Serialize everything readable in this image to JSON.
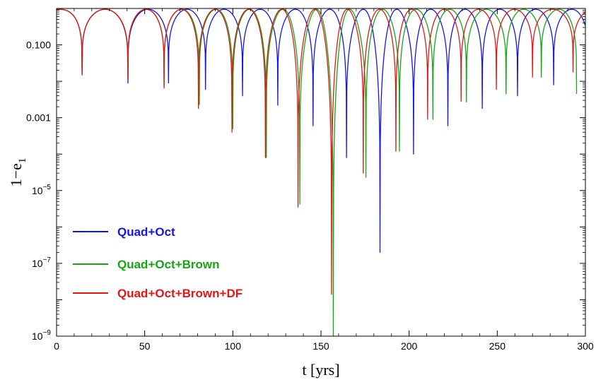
{
  "chart_data": {
    "type": "line",
    "title": "",
    "xlabel": "t [yrs]",
    "ylabel_main": "1−e",
    "ylabel_sub": "1",
    "xlim": [
      0,
      300
    ],
    "ylim_log10": [
      -9,
      0
    ],
    "y_scale": "log",
    "grid": false,
    "legend_position": "lower-left",
    "x_ticks": [
      {
        "value": 0,
        "label": "0"
      },
      {
        "value": 50,
        "label": "50"
      },
      {
        "value": 100,
        "label": "100"
      },
      {
        "value": 150,
        "label": "150"
      },
      {
        "value": 200,
        "label": "200"
      },
      {
        "value": 250,
        "label": "250"
      },
      {
        "value": 300,
        "label": "300"
      }
    ],
    "y_ticks": [
      {
        "value_log10": -1,
        "label": "0.100",
        "base": "",
        "exp": ""
      },
      {
        "value_log10": -3,
        "label": "0.001",
        "base": "",
        "exp": ""
      },
      {
        "value_log10": -5,
        "label": "",
        "base": "10",
        "exp": "−5"
      },
      {
        "value_log10": -7,
        "label": "",
        "base": "10",
        "exp": "−7"
      },
      {
        "value_log10": -9,
        "label": "",
        "base": "10",
        "exp": "−9"
      }
    ],
    "top_value": 0.95,
    "series": [
      {
        "name": "Quad+Oct",
        "color": "#1414e6",
        "minima": [
          {
            "t": 14.5,
            "v": 0.015
          },
          {
            "t": 40.5,
            "v": 0.009
          },
          {
            "t": 63.5,
            "v": 0.009
          },
          {
            "t": 84.5,
            "v": 0.006
          },
          {
            "t": 105.5,
            "v": 0.004
          },
          {
            "t": 125.5,
            "v": 0.0022
          },
          {
            "t": 145.5,
            "v": 0.0006
          },
          {
            "t": 164.5,
            "v": 8e-05
          },
          {
            "t": 183.5,
            "v": 2e-07
          },
          {
            "t": 202.5,
            "v": 0.0001
          },
          {
            "t": 222.0,
            "v": 0.0006
          },
          {
            "t": 241.5,
            "v": 0.0018
          },
          {
            "t": 261.5,
            "v": 0.004
          },
          {
            "t": 282.0,
            "v": 0.008
          }
        ]
      },
      {
        "name": "Quad+Oct+Brown",
        "color": "#14a514",
        "minima": [
          {
            "t": 14.5,
            "v": 0.015
          },
          {
            "t": 40.5,
            "v": 0.011
          },
          {
            "t": 61.0,
            "v": 0.007
          },
          {
            "t": 81.0,
            "v": 0.0023
          },
          {
            "t": 100.0,
            "v": 0.0005
          },
          {
            "t": 119.0,
            "v": 8e-05
          },
          {
            "t": 138.0,
            "v": 4.2e-06
          },
          {
            "t": 157.0,
            "v": 1e-09
          },
          {
            "t": 175.5,
            "v": 2.3e-05
          },
          {
            "t": 194.5,
            "v": 0.00012
          },
          {
            "t": 213.5,
            "v": 0.0009
          },
          {
            "t": 232.5,
            "v": 0.0027
          },
          {
            "t": 255.0,
            "v": 0.0045
          },
          {
            "t": 275.0,
            "v": 0.013
          }
        ]
      },
      {
        "name": "Quad+Oct+Brown+DF",
        "color": "#e61414",
        "minima": [
          {
            "t": 14.5,
            "v": 0.015
          },
          {
            "t": 40.5,
            "v": 0.011
          },
          {
            "t": 61.0,
            "v": 0.0065
          },
          {
            "t": 80.5,
            "v": 0.0018
          },
          {
            "t": 99.5,
            "v": 0.0004
          },
          {
            "t": 118.5,
            "v": 8e-05
          },
          {
            "t": 137.0,
            "v": 3.5e-06
          },
          {
            "t": 156.0,
            "v": 1.4e-08
          },
          {
            "t": 174.0,
            "v": 3e-05
          },
          {
            "t": 192.5,
            "v": 0.00012
          },
          {
            "t": 210.5,
            "v": 0.0009
          },
          {
            "t": 229.5,
            "v": 0.0028
          },
          {
            "t": 249.5,
            "v": 0.006
          },
          {
            "t": 270.0,
            "v": 0.013
          },
          {
            "t": 293.0,
            "v": 0.018
          }
        ]
      }
    ]
  }
}
